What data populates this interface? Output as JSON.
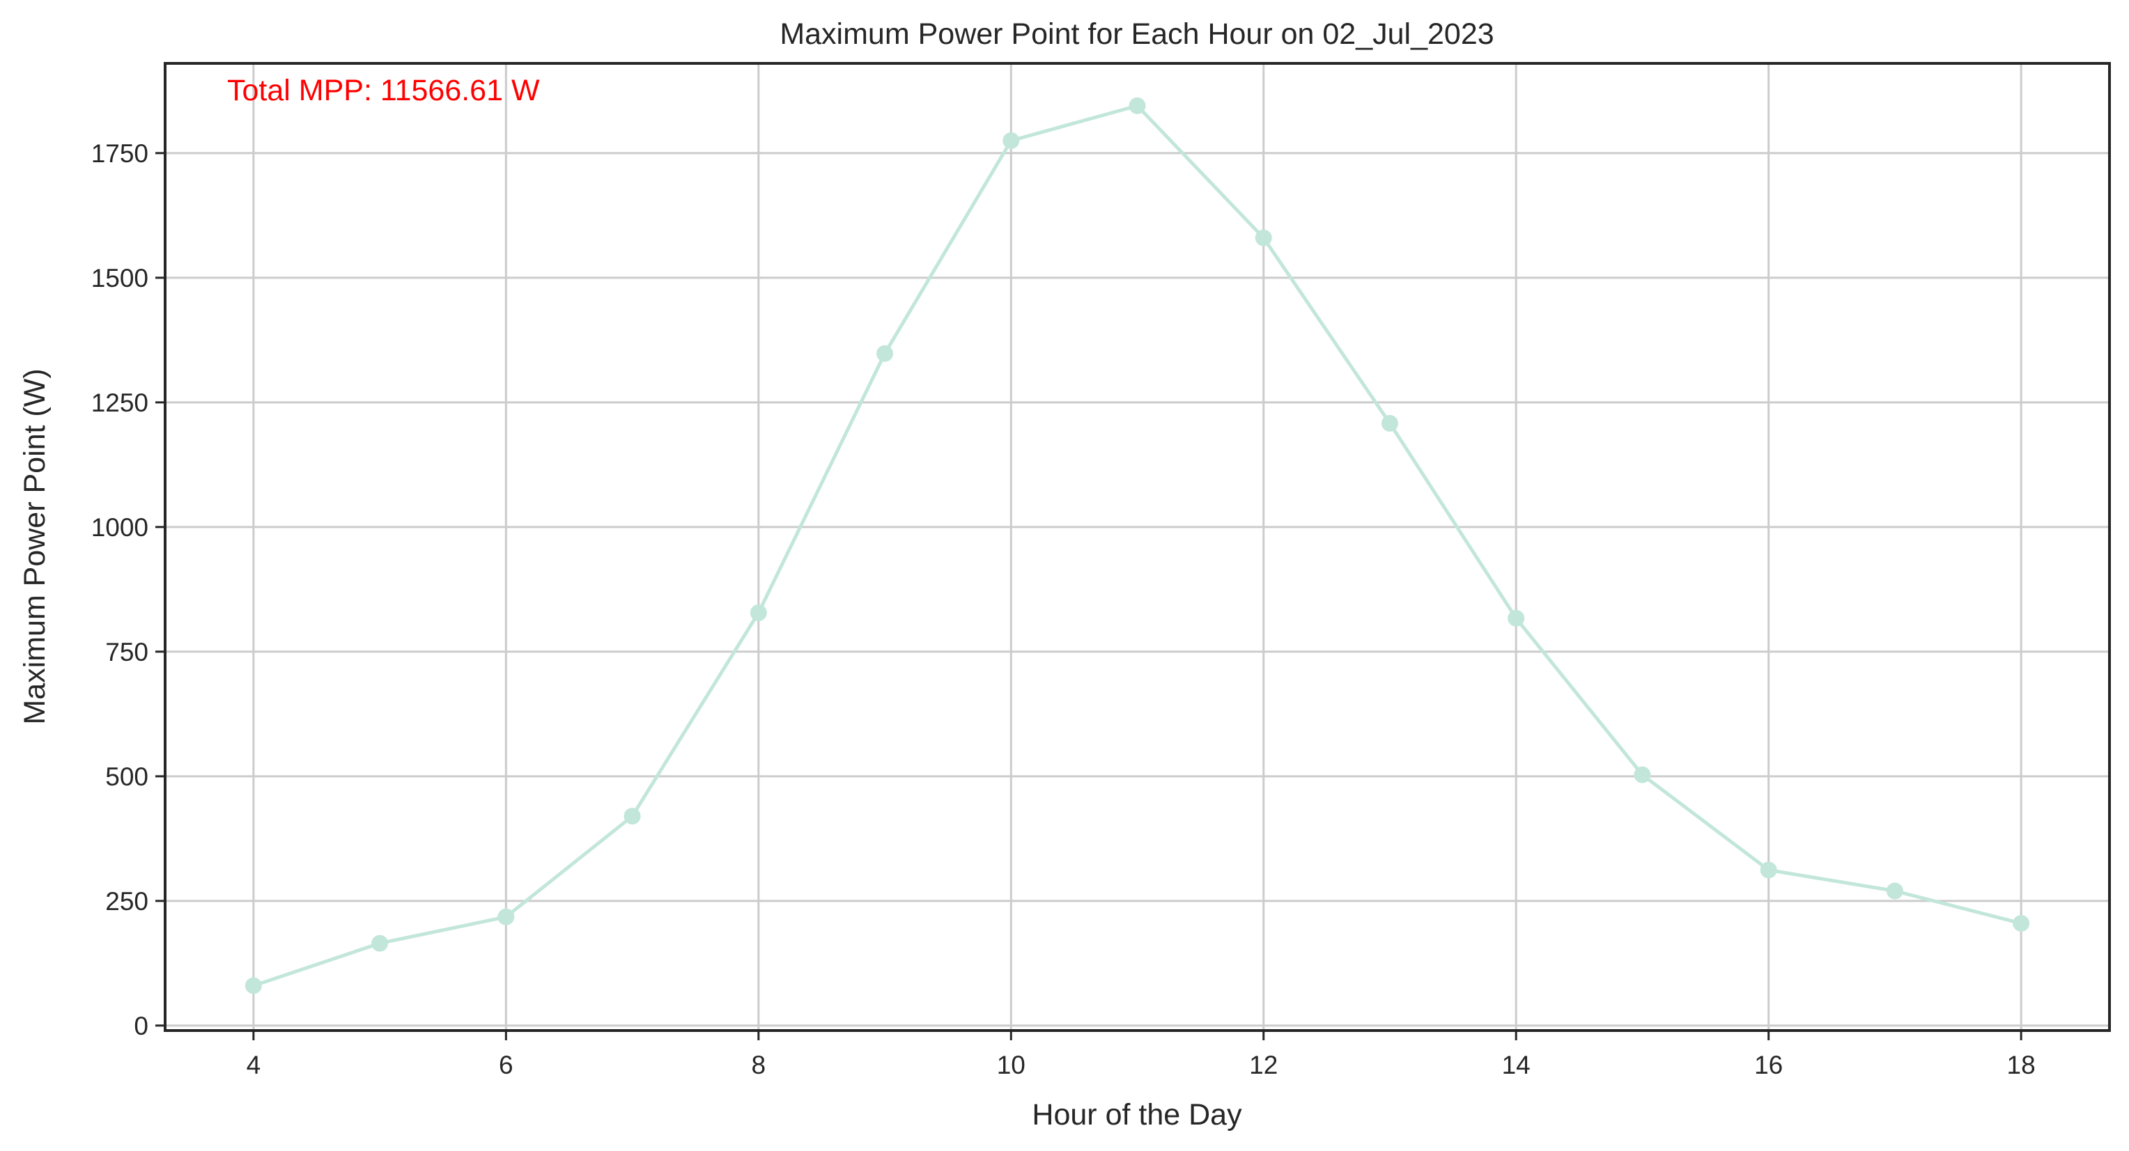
{
  "chart_data": {
    "type": "line",
    "title": "Maximum Power Point for Each Hour on 02_Jul_2023",
    "xlabel": "Hour of the Day",
    "ylabel": "Maximum Power Point (W)",
    "xlim": [
      3.3,
      18.7
    ],
    "ylim": [
      -10,
      1930
    ],
    "xticks": [
      4,
      6,
      8,
      10,
      12,
      14,
      16,
      18
    ],
    "yticks": [
      0,
      250,
      500,
      750,
      1000,
      1250,
      1500,
      1750
    ],
    "grid": true,
    "series": [
      {
        "color": "#c2e6da",
        "marker": "circle",
        "x": [
          4,
          5,
          6,
          7,
          8,
          9,
          10,
          11,
          12,
          13,
          14,
          15,
          16,
          17,
          18
        ],
        "y": [
          80,
          165,
          218,
          420,
          828,
          1348,
          1775,
          1845,
          1580,
          1208,
          817,
          503,
          312,
          270,
          205
        ]
      }
    ],
    "annotations": [
      {
        "text": "Total MPP: 11566.61 W",
        "color": "#ff0000"
      }
    ]
  }
}
